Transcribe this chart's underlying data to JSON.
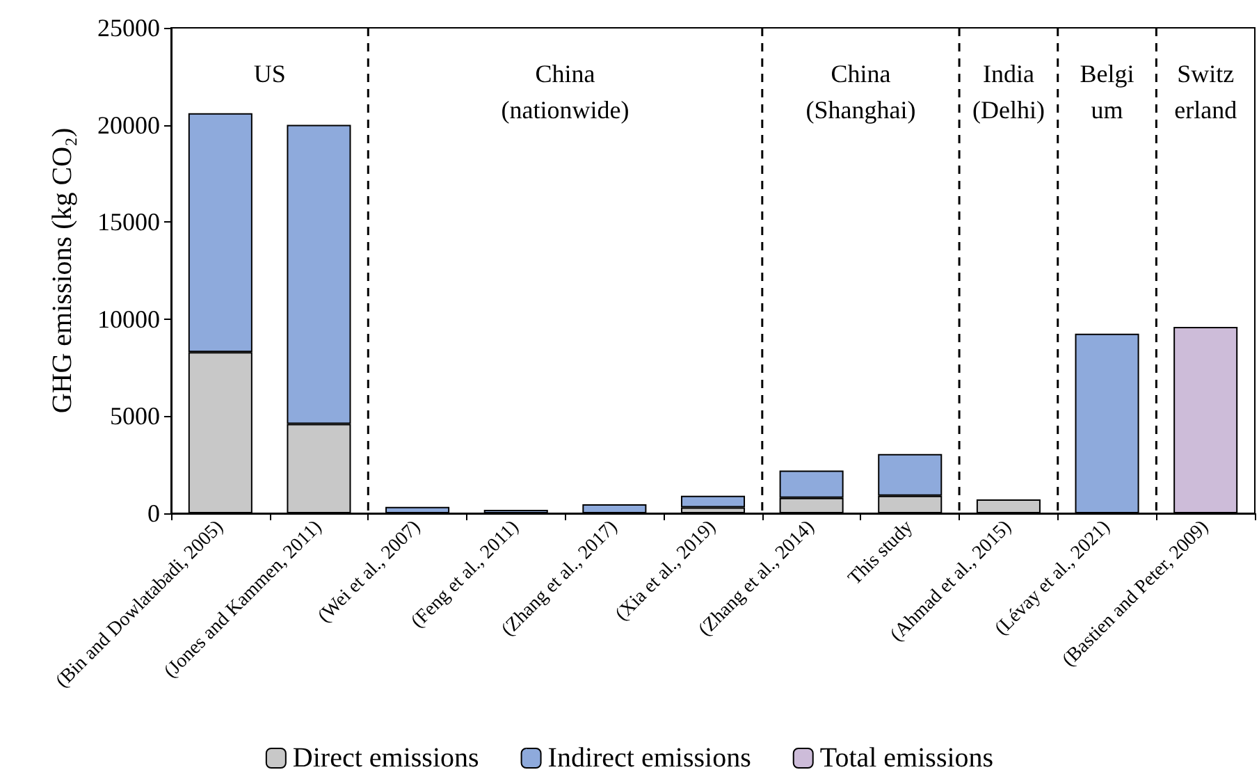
{
  "chart_data": {
    "type": "bar",
    "stacked": true,
    "ylabel": "GHG emissions (kg CO₂)",
    "categories": [
      "(Bin and Dowlatabadi, 2005)",
      "(Jones and Kammen, 2011)",
      "(Wei et al., 2007)",
      "(Feng et al., 2011)",
      "(Zhang et al., 2017)",
      "(Xia et al., 2019)",
      "(Zhang et al., 2014)",
      "This study",
      "(Ahmad et al., 2015)",
      "(Lévay et al., 2021)",
      "(Bastien and Peter, 2009)"
    ],
    "series": [
      {
        "name": "Direct emissions",
        "color": "#c8c8c8",
        "values": [
          8300,
          4600,
          null,
          null,
          null,
          300,
          800,
          900,
          720,
          null,
          null
        ]
      },
      {
        "name": "Indirect emissions",
        "color": "#8eaadc",
        "values": [
          12300,
          15400,
          330,
          180,
          470,
          600,
          1400,
          2150,
          null,
          9250,
          null
        ]
      },
      {
        "name": "Total emissions",
        "color": "#cdbcd9",
        "values": [
          null,
          null,
          null,
          null,
          null,
          null,
          null,
          null,
          null,
          null,
          9600
        ]
      }
    ],
    "ylim": [
      0,
      25000
    ],
    "yticks": [
      0,
      5000,
      10000,
      15000,
      20000,
      25000
    ],
    "grid": false,
    "legend": "bottom",
    "annotations": [
      "US",
      "China\n(nationwide)",
      "China\n(Shanghai)",
      "India\n(Delhi)",
      "Belgi\num",
      "Switz\nerland"
    ]
  }
}
